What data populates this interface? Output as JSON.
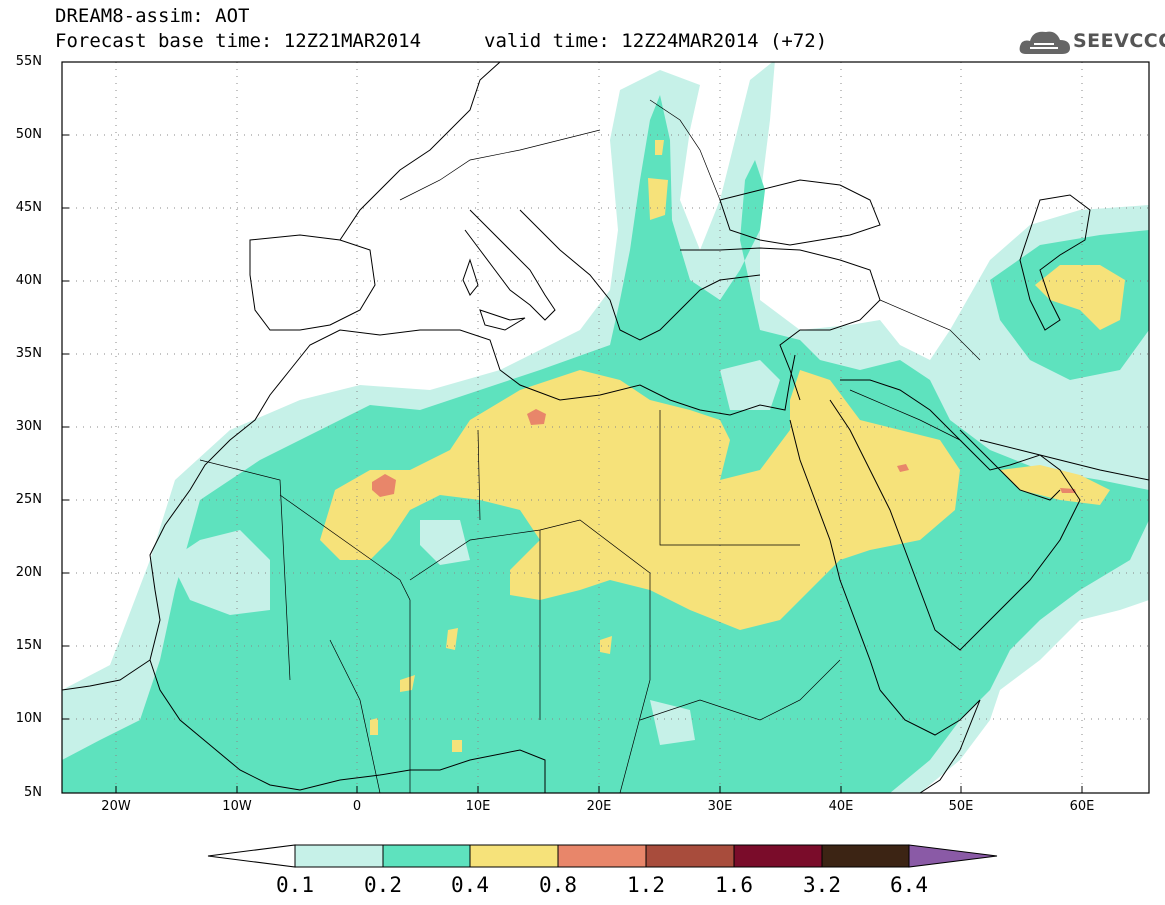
{
  "title": {
    "line1": "DREAM8-assim: AOT",
    "line2": "Forecast base time: 12Z21MAR2014",
    "line3": "valid time: 12Z24MAR2014 (+72)"
  },
  "logo": {
    "text": "SEEVCCC",
    "icon": "cloud-icon"
  },
  "axes": {
    "lat_labels": [
      "55N",
      "50N",
      "45N",
      "40N",
      "35N",
      "30N",
      "25N",
      "20N",
      "15N",
      "10N",
      "5N"
    ],
    "lon_labels": [
      "20W",
      "10W",
      "0",
      "10E",
      "20E",
      "30E",
      "40E",
      "50E",
      "60E"
    ]
  },
  "colorbar": {
    "labels": [
      "0.1",
      "0.2",
      "0.4",
      "0.8",
      "1.2",
      "1.6",
      "3.2",
      "6.4"
    ],
    "colors": [
      "#ffffff",
      "#c6f1e8",
      "#5ee2be",
      "#f6e27a",
      "#e8866a",
      "#a84c3c",
      "#7a0c2a",
      "#3c2414",
      "#8a5aa6"
    ]
  },
  "colors": {
    "c01": "#c6f1e8",
    "c02": "#5ee2be",
    "c04": "#f6e27a",
    "c08": "#e8866a",
    "coast": "#000000"
  }
}
